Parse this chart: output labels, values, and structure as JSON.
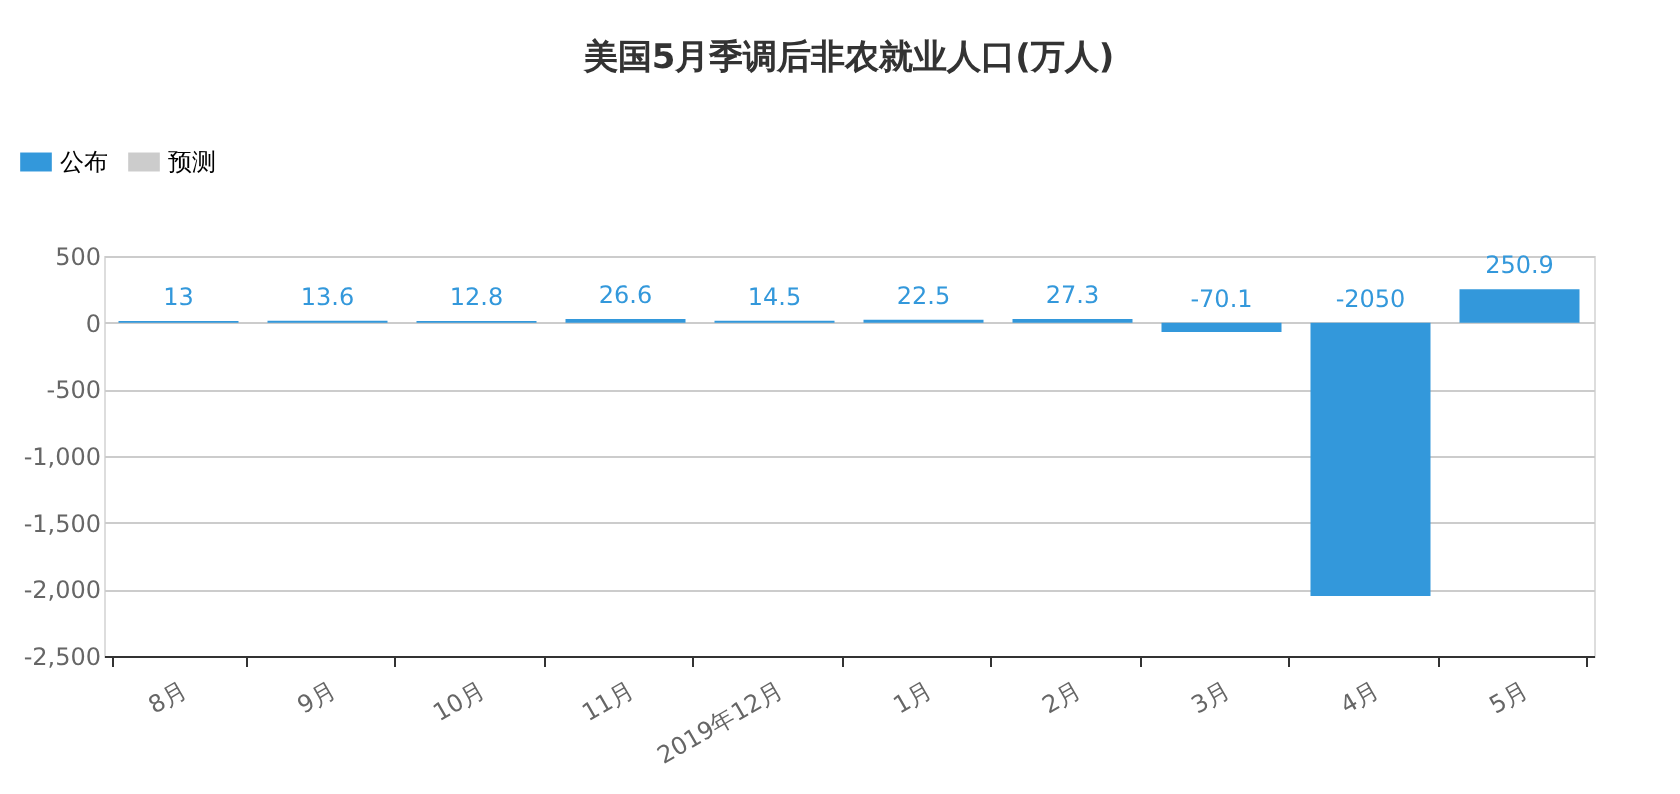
{
  "chart_data": {
    "type": "bar",
    "title": "美国5月季调后非农就业人口(万人)",
    "categories": [
      "8月",
      "9月",
      "10月",
      "11月",
      "2019年12月",
      "1月",
      "2月",
      "3月",
      "4月",
      "5月"
    ],
    "series": [
      {
        "name": "公布",
        "color": "#3398db",
        "values": [
          13,
          13.6,
          12.8,
          26.6,
          14.5,
          22.5,
          27.3,
          -70.1,
          -2050,
          250.9
        ]
      },
      {
        "name": "预测",
        "color": "#cccccc",
        "values": [
          null,
          null,
          null,
          null,
          null,
          null,
          null,
          null,
          null,
          null
        ]
      }
    ],
    "ylim": [
      -2500,
      500
    ],
    "yticks": [
      {
        "value": -2500,
        "label": "-2,500"
      },
      {
        "value": -2000,
        "label": "-2,000"
      },
      {
        "value": -1500,
        "label": "-1,500"
      },
      {
        "value": -1000,
        "label": "-1,000"
      },
      -500,
      0,
      500
    ],
    "grid": "y",
    "legend": "top left",
    "data_labels": true
  }
}
